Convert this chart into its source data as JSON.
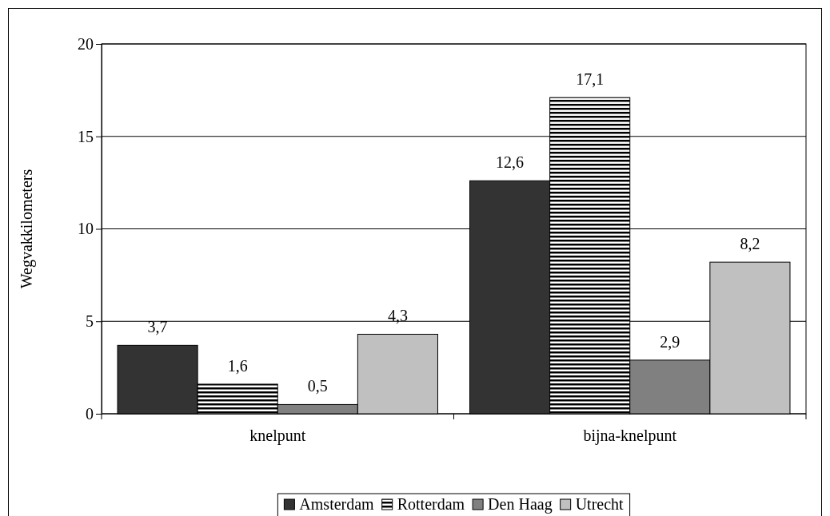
{
  "chart_data": {
    "type": "bar",
    "ylabel": "Wegvakkilometers",
    "categories": [
      "knelpunt",
      "bijna-knelpunt"
    ],
    "series": [
      {
        "name": "Amsterdam",
        "color": "#333333",
        "values": [
          3.7,
          12.6
        ],
        "value_labels": [
          "3,7",
          "12,6"
        ]
      },
      {
        "name": "Rotterdam",
        "color": "#000000",
        "values": [
          1.6,
          17.1
        ],
        "value_labels": [
          "1,6",
          "17,1"
        ]
      },
      {
        "name": "Den Haag",
        "color": "#808080",
        "values": [
          0.5,
          2.9
        ],
        "value_labels": [
          "0,5",
          "2,9"
        ]
      },
      {
        "name": "Utrecht",
        "color": "#c0c0c0",
        "values": [
          4.3,
          8.2
        ],
        "value_labels": [
          "4,3",
          "8,2"
        ]
      }
    ],
    "ylim": [
      0,
      20
    ],
    "yticks": [
      0,
      5,
      10,
      15,
      20
    ],
    "grid": "y",
    "legend": "bottom"
  }
}
